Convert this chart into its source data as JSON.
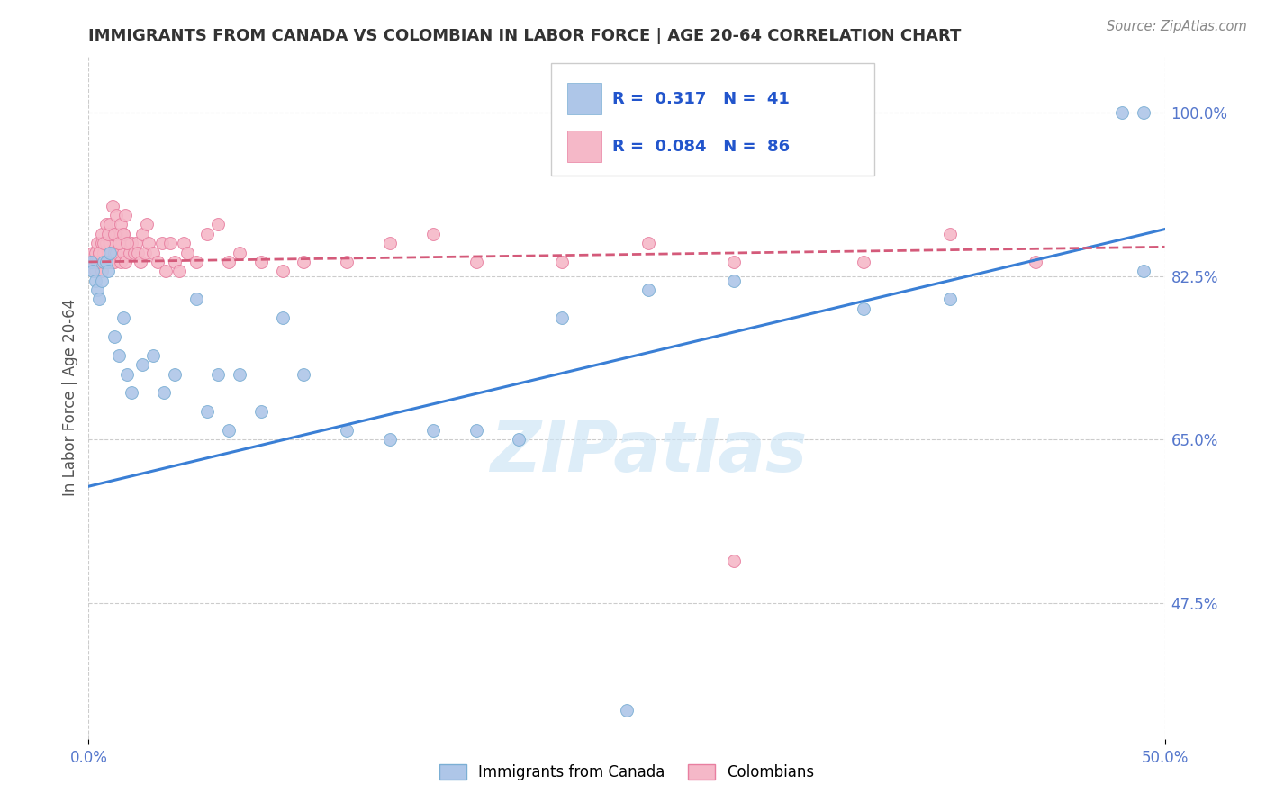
{
  "title": "IMMIGRANTS FROM CANADA VS COLOMBIAN IN LABOR FORCE | AGE 20-64 CORRELATION CHART",
  "source": "Source: ZipAtlas.com",
  "ylabel": "In Labor Force | Age 20-64",
  "ytick_labels": [
    "100.0%",
    "82.5%",
    "65.0%",
    "47.5%"
  ],
  "ytick_values": [
    1.0,
    0.825,
    0.65,
    0.475
  ],
  "xlim": [
    0.0,
    0.5
  ],
  "ylim": [
    0.33,
    1.06
  ],
  "watermark": "ZIPatlas",
  "canada_x": [
    0.001,
    0.002,
    0.003,
    0.004,
    0.005,
    0.006,
    0.007,
    0.008,
    0.009,
    0.01,
    0.012,
    0.014,
    0.016,
    0.018,
    0.02,
    0.025,
    0.03,
    0.035,
    0.04,
    0.05,
    0.055,
    0.06,
    0.065,
    0.07,
    0.08,
    0.09,
    0.1,
    0.12,
    0.14,
    0.16,
    0.18,
    0.2,
    0.22,
    0.26,
    0.3,
    0.36,
    0.4,
    0.48,
    0.49,
    0.49,
    0.25
  ],
  "canada_y": [
    0.84,
    0.83,
    0.82,
    0.81,
    0.8,
    0.82,
    0.84,
    0.84,
    0.83,
    0.85,
    0.76,
    0.74,
    0.78,
    0.72,
    0.7,
    0.73,
    0.74,
    0.7,
    0.72,
    0.8,
    0.68,
    0.72,
    0.66,
    0.72,
    0.68,
    0.78,
    0.72,
    0.66,
    0.65,
    0.66,
    0.66,
    0.65,
    0.78,
    0.81,
    0.82,
    0.79,
    0.8,
    1.0,
    1.0,
    0.83,
    0.36
  ],
  "colombia_x": [
    0.001,
    0.002,
    0.003,
    0.003,
    0.003,
    0.004,
    0.004,
    0.005,
    0.005,
    0.006,
    0.006,
    0.006,
    0.007,
    0.007,
    0.008,
    0.008,
    0.009,
    0.009,
    0.01,
    0.01,
    0.011,
    0.011,
    0.012,
    0.012,
    0.013,
    0.013,
    0.014,
    0.015,
    0.015,
    0.016,
    0.016,
    0.017,
    0.018,
    0.019,
    0.02,
    0.021,
    0.022,
    0.023,
    0.024,
    0.025,
    0.026,
    0.027,
    0.028,
    0.03,
    0.032,
    0.034,
    0.036,
    0.038,
    0.04,
    0.042,
    0.044,
    0.046,
    0.05,
    0.055,
    0.06,
    0.065,
    0.07,
    0.08,
    0.09,
    0.1,
    0.12,
    0.14,
    0.16,
    0.18,
    0.22,
    0.26,
    0.3,
    0.36,
    0.4,
    0.44,
    0.004,
    0.005,
    0.006,
    0.007,
    0.008,
    0.009,
    0.01,
    0.011,
    0.012,
    0.013,
    0.014,
    0.015,
    0.016,
    0.017,
    0.018,
    0.3
  ],
  "colombia_y": [
    0.84,
    0.85,
    0.84,
    0.83,
    0.85,
    0.84,
    0.86,
    0.85,
    0.84,
    0.84,
    0.86,
    0.83,
    0.85,
    0.84,
    0.84,
    0.86,
    0.85,
    0.84,
    0.86,
    0.84,
    0.87,
    0.84,
    0.85,
    0.84,
    0.87,
    0.85,
    0.86,
    0.84,
    0.87,
    0.85,
    0.87,
    0.84,
    0.86,
    0.85,
    0.86,
    0.85,
    0.86,
    0.85,
    0.84,
    0.87,
    0.85,
    0.88,
    0.86,
    0.85,
    0.84,
    0.86,
    0.83,
    0.86,
    0.84,
    0.83,
    0.86,
    0.85,
    0.84,
    0.87,
    0.88,
    0.84,
    0.85,
    0.84,
    0.83,
    0.84,
    0.84,
    0.86,
    0.87,
    0.84,
    0.84,
    0.86,
    0.84,
    0.84,
    0.87,
    0.84,
    0.84,
    0.85,
    0.87,
    0.86,
    0.88,
    0.87,
    0.88,
    0.9,
    0.87,
    0.89,
    0.86,
    0.88,
    0.87,
    0.89,
    0.86,
    0.52
  ],
  "canada_line_x": [
    0.0,
    0.5
  ],
  "canada_line_y": [
    0.6,
    0.875
  ],
  "colombia_line_x": [
    0.0,
    0.5
  ],
  "colombia_line_y": [
    0.84,
    0.856
  ],
  "point_size": 100,
  "canada_color": "#aec6e8",
  "canada_edge": "#7bafd4",
  "colombia_color": "#f5b8c8",
  "colombia_edge": "#e87fa0",
  "grid_color": "#cccccc",
  "bg_color": "#ffffff",
  "title_color": "#333333",
  "tick_color": "#5577cc"
}
